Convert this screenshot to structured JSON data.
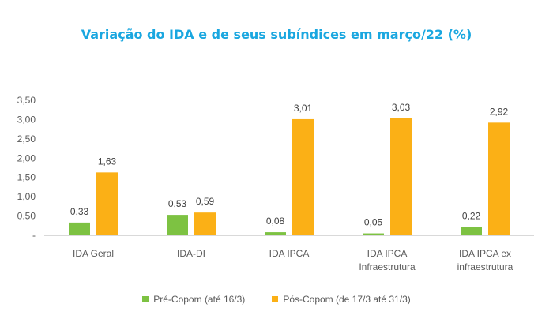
{
  "chart_data": {
    "type": "bar",
    "title": "Variação do IDA e de seus subíndices em março/22 (%)",
    "categories": [
      [
        "IDA Geral"
      ],
      [
        "IDA-DI"
      ],
      [
        "IDA IPCA"
      ],
      [
        "IDA IPCA",
        "Infraestrutura"
      ],
      [
        "IDA IPCA ex",
        "infraestrutura"
      ]
    ],
    "series": [
      {
        "name": "Pré-Copom (até 16/3)",
        "values": [
          0.33,
          0.53,
          0.08,
          0.05,
          0.22
        ],
        "labels": [
          "0,33",
          "0,53",
          "0,08",
          "0,05",
          "0,22"
        ],
        "color": "#7dc242"
      },
      {
        "name": "Pós-Copom (de 17/3 até 31/3)",
        "values": [
          1.63,
          0.59,
          3.01,
          3.03,
          2.92
        ],
        "labels": [
          "1,63",
          "0,59",
          "3,01",
          "3,03",
          "2,92"
        ],
        "color": "#fbb016"
      }
    ],
    "yticks": [
      "-",
      "0,50",
      "1,00",
      "1,50",
      "2,00",
      "2,50",
      "3,00",
      "3,50"
    ],
    "ylim": [
      0,
      3.5
    ],
    "xlabel": "",
    "ylabel": "",
    "grid": false,
    "legend_position": "bottom"
  }
}
